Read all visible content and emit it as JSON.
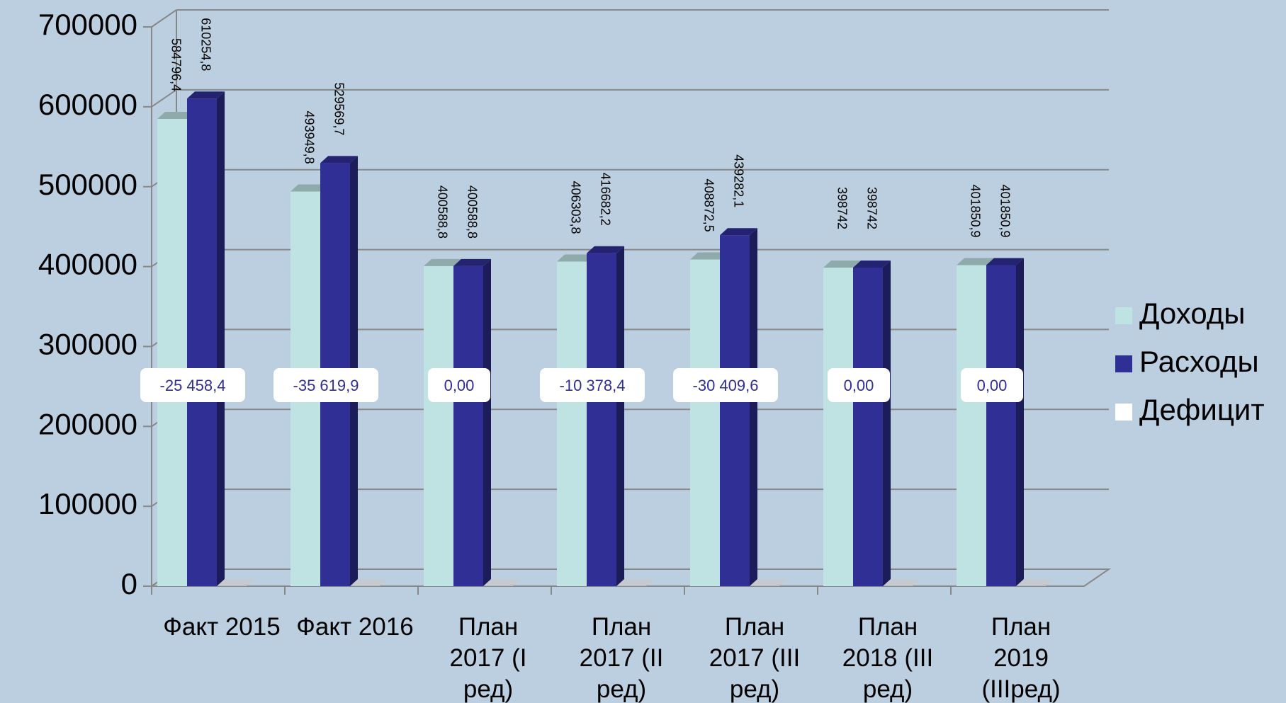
{
  "chart_data": {
    "type": "bar3d",
    "categories": [
      "Факт 2015",
      "Факт 2016",
      "План 2017 (I ред)",
      "План 2017 (II ред)",
      "План 2017 (III ред)",
      "План 2018 (III ред)",
      "План 2019 (IIIред)"
    ],
    "series": [
      {
        "name": "Доходы",
        "color": "#bfe3e3",
        "values": [
          584796.4,
          493949.8,
          400588.8,
          406303.8,
          408872.5,
          398742,
          401850.9
        ],
        "value_labels": [
          "584796,4",
          "493949,8",
          "400588,8",
          "406303,8",
          "408872,5",
          "398742",
          "401850,9"
        ]
      },
      {
        "name": "Расходы",
        "color": "#2f2f96",
        "values": [
          610254.8,
          529569.7,
          400588.8,
          416682.2,
          439282.1,
          398742,
          401850.9
        ],
        "value_labels": [
          "610254,8",
          "529569,7",
          "400588,8",
          "416682,2",
          "439282,1",
          "398742",
          "401850,9"
        ]
      },
      {
        "name": "Дефицит",
        "color": "#ffffff",
        "values": [
          -25458.4,
          -35619.9,
          0,
          -10378.4,
          -30409.6,
          0,
          0
        ],
        "value_labels": [
          "-25 458,4",
          "-35 619,9",
          "0,00",
          "-10 378,4",
          "-30 409,6",
          "0,00",
          "0,00"
        ]
      }
    ],
    "ylim": [
      0,
      700000
    ],
    "yticks": [
      0,
      100000,
      200000,
      300000,
      400000,
      500000,
      600000,
      700000
    ],
    "grid": true,
    "legend": "right"
  }
}
